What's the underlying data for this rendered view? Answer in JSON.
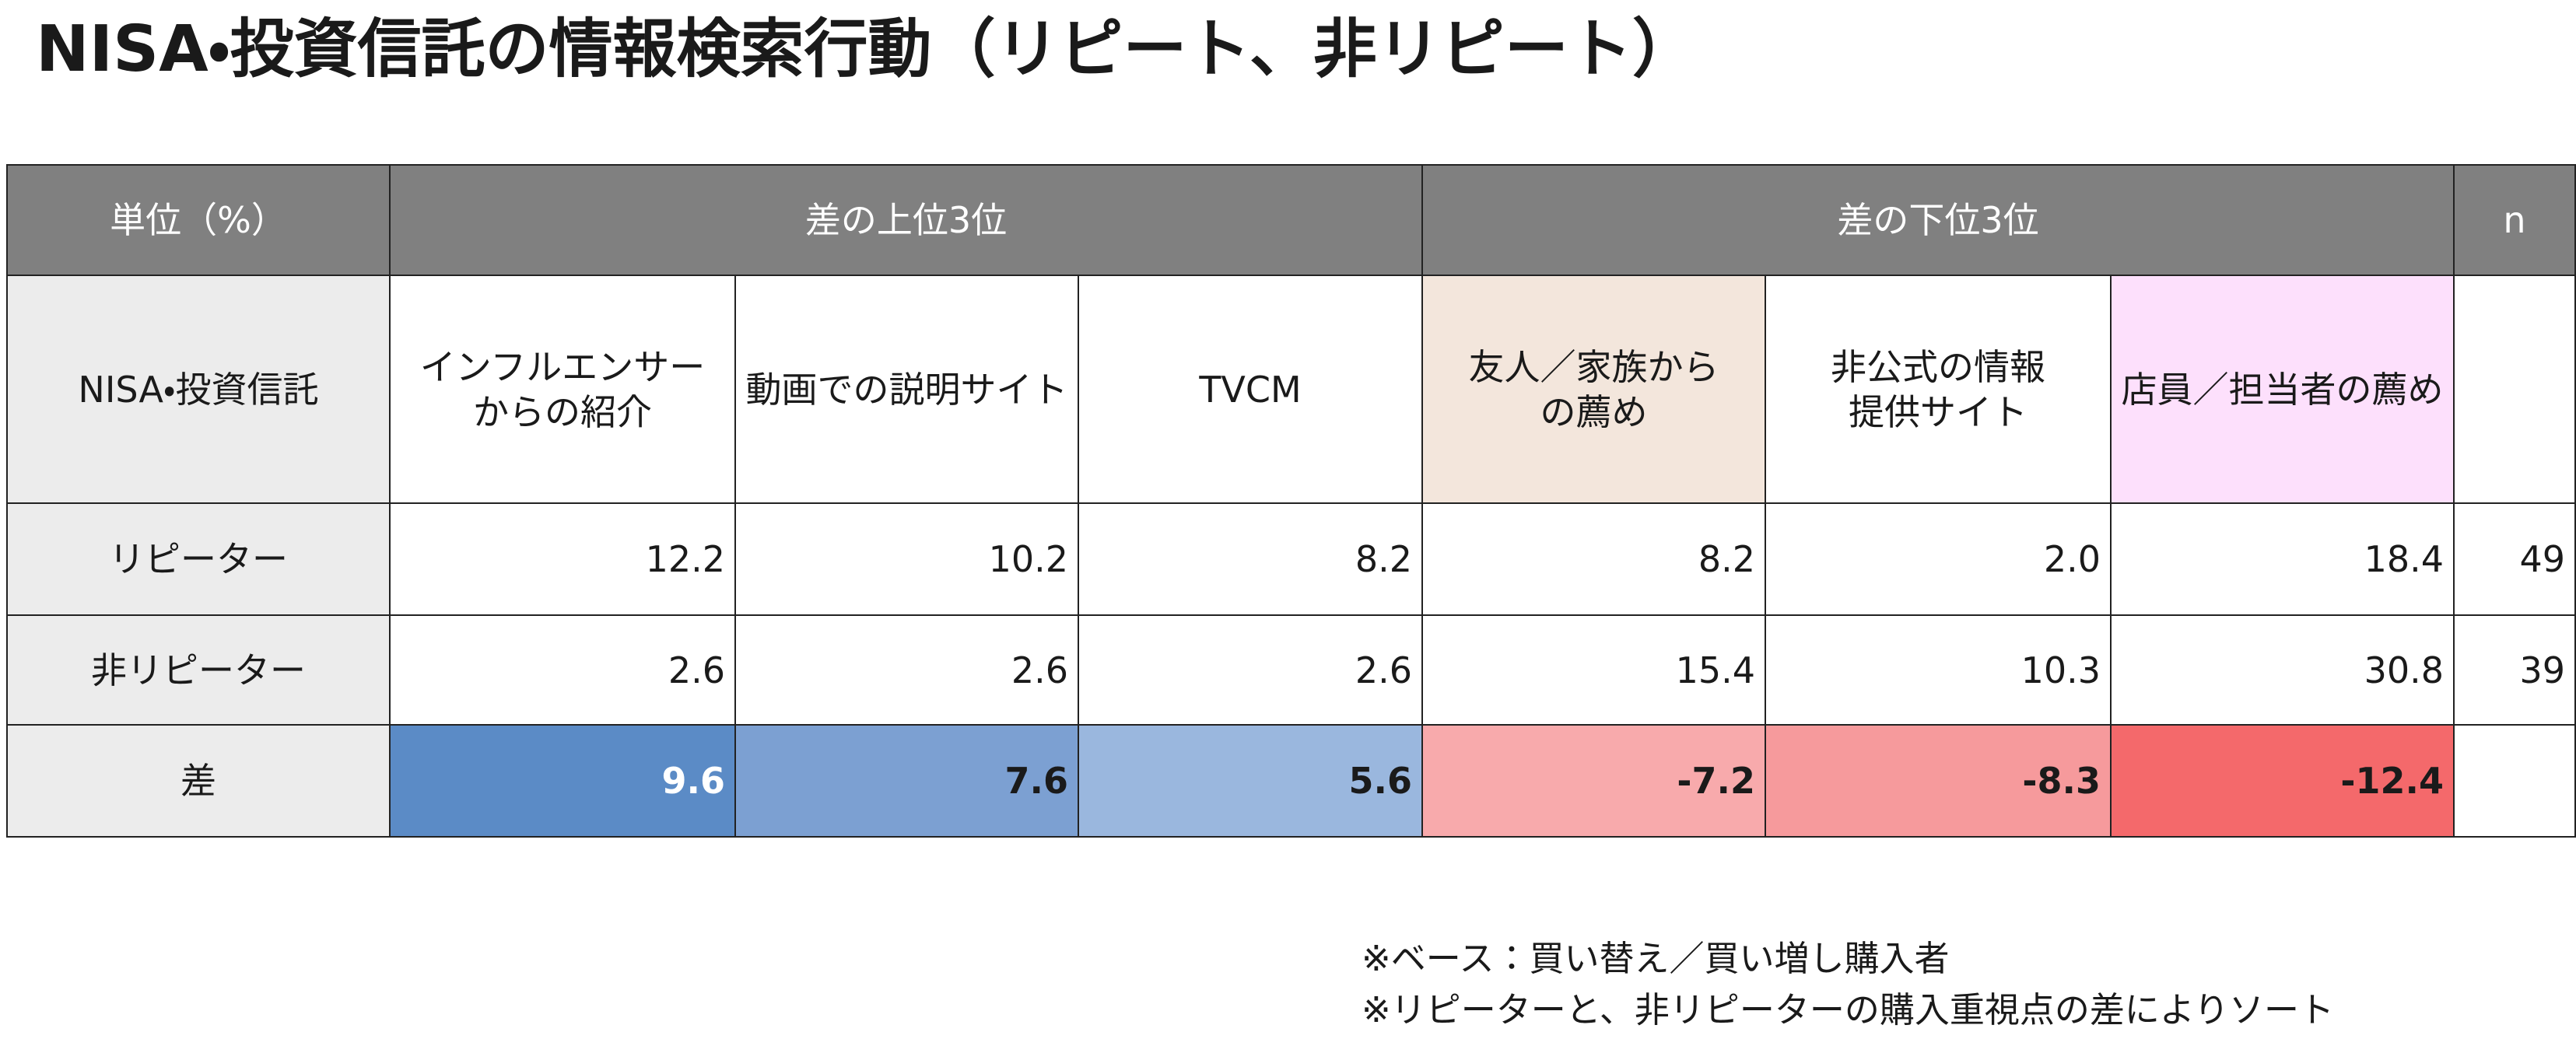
{
  "title": "NISA・投資信託の情報検索行動（リピート、非リピート）",
  "table": {
    "header": {
      "unit": "単位（%）",
      "top": "差の上位3位",
      "bottom": "差の下位3位",
      "n": "n"
    },
    "subheader": {
      "label": "NISA・投資信託",
      "columns": [
        "インフルエンサー\nからの紹介",
        "動画での説明サイト",
        "TVCM",
        "友人／家族から\nの薦め",
        "非公式の情報\n提供サイト",
        "店員／担当者の薦め"
      ],
      "fills": [
        "#ffffff",
        "#ffffff",
        "#ffffff",
        "#f3e6dc",
        "#ffffff",
        "#fde0fc"
      ]
    },
    "rows": [
      {
        "label": "リピーター",
        "values": [
          "12.2",
          "10.2",
          "8.2",
          "8.2",
          "2.0",
          "18.4"
        ],
        "n": "49"
      },
      {
        "label": "非リピーター",
        "values": [
          "2.6",
          "2.6",
          "2.6",
          "15.4",
          "10.3",
          "30.8"
        ],
        "n": "39"
      },
      {
        "label": "差",
        "values": [
          "9.6",
          "7.6",
          "5.6",
          "-7.2",
          "-8.3",
          "-12.4"
        ],
        "fills": [
          "#5b8bc6",
          "#7ca0d2",
          "#9ab7de",
          "#f8aaac",
          "#f69a9c",
          "#f4696b"
        ],
        "text_colors": [
          "#ffffff",
          "#1a1a1a",
          "#1a1a1a",
          "#1a1a1a",
          "#1a1a1a",
          "#1a1a1a"
        ]
      }
    ]
  },
  "notes": [
    "※ベース：買い替え／買い増し購入者",
    "※リピーターと、非リピーターの購入重視点の差によりソート"
  ]
}
